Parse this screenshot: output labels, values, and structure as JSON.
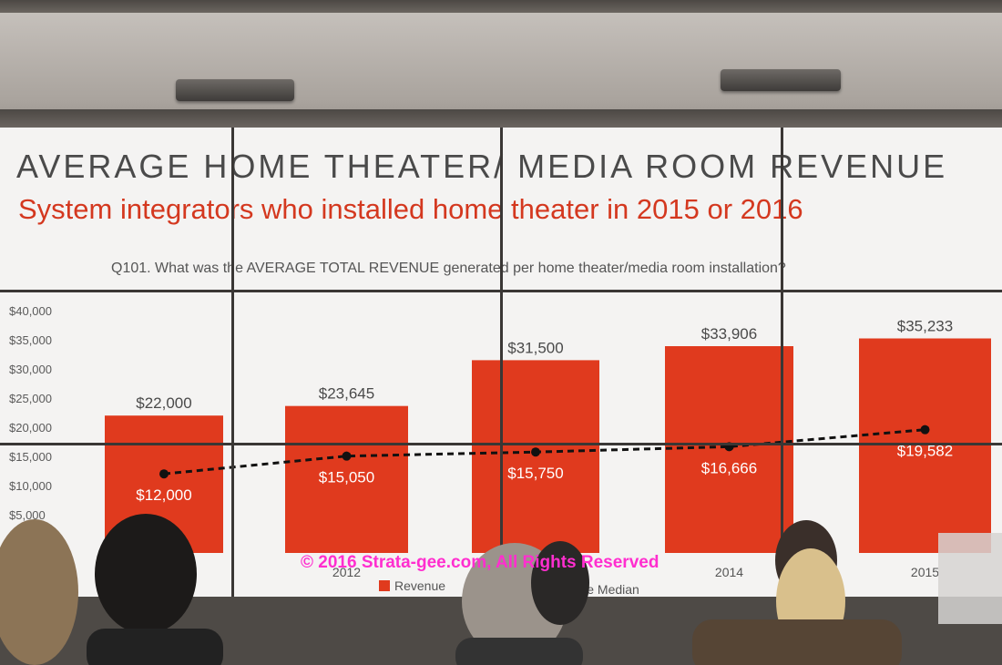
{
  "slide": {
    "title": "AVERAGE HOME THEATER/ MEDIA ROOM REVENUE",
    "subtitle": "System integrators who installed home theater in 2015 or 2016",
    "question": "Q101. What was the AVERAGE TOTAL REVENUE generated per home theater/media room installation?"
  },
  "chart_data": {
    "type": "bar",
    "categories": [
      "",
      "2012",
      "",
      "2014",
      "2015"
    ],
    "y_ticks": [
      "$40,000",
      "$35,000",
      "$30,000",
      "$25,000",
      "$20,000",
      "$15,000",
      "$10,000",
      "$5,000"
    ],
    "ylim": [
      0,
      40000
    ],
    "series": [
      {
        "name": "Revenue",
        "type": "bar",
        "color": "#e03a1e",
        "values": [
          22000,
          23645,
          31500,
          33906,
          35233
        ],
        "labels": [
          "$22,000",
          "$23,645",
          "$31,500",
          "$33,906",
          "$35,233"
        ]
      },
      {
        "name": "Revenue Median",
        "type": "line",
        "style": "dashed",
        "color": "#111111",
        "values": [
          12000,
          15050,
          15750,
          16666,
          19582
        ],
        "labels": [
          "$12,000",
          "$15,050",
          "$15,750",
          "$16,666",
          "$19,582"
        ]
      }
    ],
    "legend": [
      {
        "label": "Revenue",
        "color": "#e03a1e"
      },
      {
        "label": "Revenue Median",
        "color": "#111111"
      }
    ],
    "legend_position": "bottom"
  },
  "watermark": "© 2016 Strata-gee.com, All Rights Reserved"
}
